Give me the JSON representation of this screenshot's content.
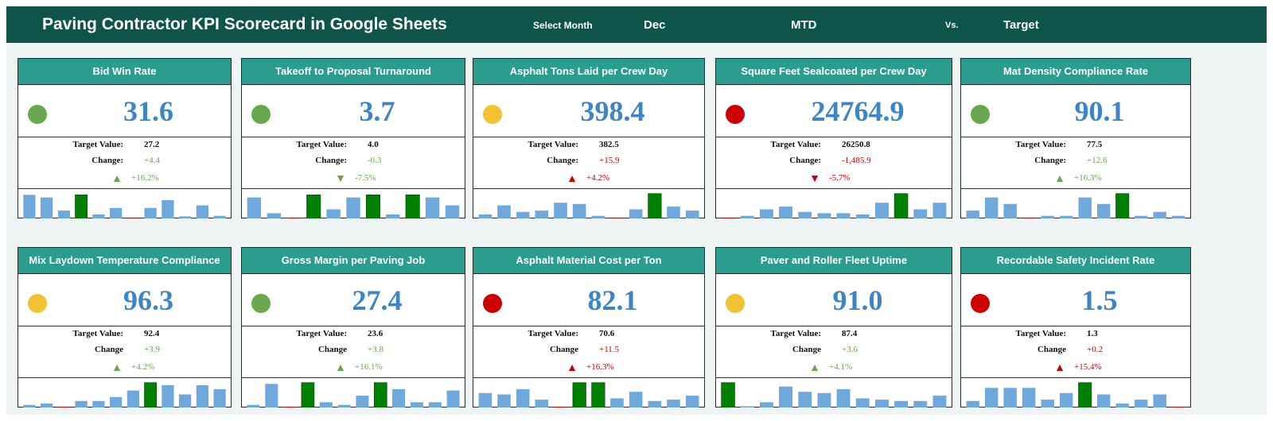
{
  "header": {
    "title": "Paving Contractor KPI Scorecard in Google Sheets",
    "select_month_label": "Select Month",
    "month": "Dec",
    "period": "MTD",
    "vs_label": "Vs.",
    "compare": "Target"
  },
  "colors": {
    "header_bg": "#0f544b",
    "card_title_bg": "#2a9d8f",
    "value_blue": "#3d85c6",
    "status_green": "#6aa84f",
    "status_amber": "#f1c232",
    "status_red": "#cc0000",
    "spark_bar": "#6fa8dc",
    "spark_highlight": "#008000"
  },
  "cards": [
    {
      "title": "Bid Win Rate",
      "status": "green",
      "value": "31.6",
      "target_label": "Target Value:",
      "target": "27.2",
      "change_label": "Change:",
      "change": "+4.4",
      "pct": "+16.2%",
      "dir": "up",
      "tone": "green",
      "bars": [
        9,
        8,
        3,
        9,
        1.5,
        4,
        0,
        4,
        7,
        0.8,
        5,
        1
      ],
      "highlight": [
        3
      ]
    },
    {
      "title": "Takeoff to Proposal Turnaround",
      "status": "green",
      "value": "3.7",
      "target_label": "Target Value:",
      "target": "4.0",
      "change_label": "Change:",
      "change": "-0.3",
      "pct": "-7.5%",
      "dir": "down",
      "tone": "green",
      "bars": [
        8,
        2,
        0,
        9,
        3.5,
        8,
        9,
        1.5,
        9,
        8,
        5
      ],
      "highlight": [
        3,
        6,
        8
      ]
    },
    {
      "title": "Asphalt Tons Laid per Crew Day",
      "status": "amber",
      "value": "398.4",
      "target_label": "Target Value:",
      "target": "382.5",
      "change_label": "Change:",
      "change": "+15.9",
      "pct": "+4.2%",
      "dir": "up",
      "tone": "red",
      "bars": [
        1.5,
        5,
        2.5,
        3,
        6,
        5.5,
        1,
        0,
        3.5,
        9.5,
        4.5,
        3
      ],
      "highlight": [
        9
      ]
    },
    {
      "title": "Square Feet Sealcoated per Crew Day",
      "status": "red",
      "value": "24764.9",
      "target_label": "Target Value:",
      "target": "26250.8",
      "change_label": "Change:",
      "change": "-1,485.9",
      "pct": "-5.7%",
      "dir": "down",
      "tone": "red",
      "bars": [
        0,
        1,
        3.5,
        4.5,
        2.5,
        2,
        2,
        1.5,
        6,
        9.5,
        3.5,
        6
      ],
      "highlight": [
        9
      ]
    },
    {
      "title": "Mat Density Compliance Rate",
      "status": "green",
      "value": "90.1",
      "target_label": "Target Value:",
      "target": "77.5",
      "change_label": "Change:",
      "change": "+12.6",
      "pct": "+16.3%",
      "dir": "up",
      "tone": "green",
      "bars": [
        3,
        8,
        5.5,
        0,
        1,
        1,
        8,
        5.5,
        9.5,
        1,
        2.5,
        1
      ],
      "highlight": [
        8
      ]
    },
    {
      "title": "Mix Laydown Temperature Compliance",
      "status": "amber",
      "value": "96.3",
      "target_label": "Target Value:",
      "target": "92.4",
      "change_label": "Change",
      "change": "+3.9",
      "pct": "+4.2%",
      "dir": "up",
      "tone": "green",
      "bars": [
        1,
        1.5,
        0,
        2.5,
        2.5,
        4,
        6.5,
        9.5,
        8.5,
        5,
        8.5,
        7
      ],
      "highlight": [
        7
      ]
    },
    {
      "title": "Gross Margin per Paving Job",
      "status": "green",
      "value": "27.4",
      "target_label": "Target Value:",
      "target": "23.6",
      "change_label": "Change",
      "change": "+3.8",
      "pct": "+16.1%",
      "dir": "up",
      "tone": "green",
      "bars": [
        1,
        9,
        0,
        9.5,
        2,
        1,
        4.5,
        9.5,
        7,
        2,
        2,
        6.5
      ],
      "highlight": [
        3,
        7
      ]
    },
    {
      "title": "Asphalt Material Cost per Ton",
      "status": "red",
      "value": "82.1",
      "target_label": "Target Value:",
      "target": "70.6",
      "change_label": "Change",
      "change": "+11.5",
      "pct": "+16.3%",
      "dir": "up",
      "tone": "red",
      "bars": [
        5.5,
        5,
        7,
        3,
        0,
        9.5,
        9.5,
        3.5,
        6,
        2.5,
        3,
        4.5
      ],
      "highlight": [
        5,
        6
      ]
    },
    {
      "title": "Paver and Roller Fleet Uptime",
      "status": "amber",
      "value": "91.0",
      "target_label": "Target Value:",
      "target": "87.4",
      "change_label": "Change",
      "change": "+3.6",
      "pct": "+4.1%",
      "dir": "up",
      "tone": "green",
      "bars": [
        9.5,
        0.5,
        2,
        8,
        6,
        5.5,
        7,
        3.5,
        3,
        2.5,
        2.5,
        4.5
      ],
      "highlight": [
        0
      ]
    },
    {
      "title": "Recordable Safety Incident Rate",
      "status": "red",
      "value": "1.5",
      "target_label": "Target Value:",
      "target": "1.3",
      "change_label": "Change",
      "change": "+0.2",
      "pct": "+15.4%",
      "dir": "up",
      "tone": "red",
      "bars": [
        2.5,
        7.5,
        7.5,
        7.5,
        3,
        5.5,
        9.5,
        5,
        1.5,
        3,
        5,
        0
      ],
      "highlight": [
        6
      ]
    }
  ]
}
